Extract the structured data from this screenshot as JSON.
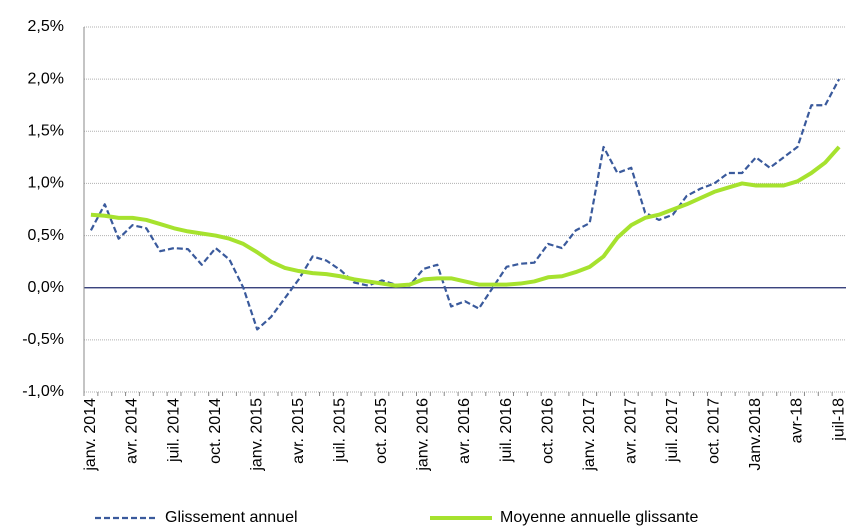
{
  "chart_data": {
    "type": "line",
    "categories": [
      "janv. 2014",
      null,
      null,
      "avr. 2014",
      null,
      null,
      "juil. 2014",
      null,
      null,
      "oct. 2014",
      null,
      null,
      "janv. 2015",
      null,
      null,
      "avr. 2015",
      null,
      null,
      "juil. 2015",
      null,
      null,
      "oct. 2015",
      null,
      null,
      "janv. 2016",
      null,
      null,
      "avr. 2016",
      null,
      null,
      "juil. 2016",
      null,
      null,
      "oct. 2016",
      null,
      null,
      "janv. 2017",
      null,
      null,
      "avr. 2017",
      null,
      null,
      "juil. 2017",
      null,
      null,
      "oct. 2017",
      null,
      null,
      "Janv.2018",
      null,
      null,
      "avr-18",
      null,
      null,
      "juil-18"
    ],
    "series": [
      {
        "name": "Glissement annuel",
        "color": "#3a5a9c",
        "dash": true,
        "values": [
          0.55,
          0.8,
          0.47,
          0.6,
          0.57,
          0.35,
          0.38,
          0.37,
          0.22,
          0.38,
          0.27,
          0.0,
          -0.4,
          -0.28,
          -0.1,
          0.08,
          0.3,
          0.26,
          0.17,
          0.05,
          0.02,
          0.07,
          0.03,
          0.02,
          0.18,
          0.22,
          -0.18,
          -0.13,
          -0.2,
          0.0,
          0.2,
          0.23,
          0.24,
          0.42,
          0.38,
          0.55,
          0.62,
          1.35,
          1.1,
          1.15,
          0.72,
          0.65,
          0.7,
          0.88,
          0.95,
          1.0,
          1.1,
          1.1,
          1.25,
          1.15,
          1.25,
          1.35,
          1.75,
          1.75,
          2.0
        ]
      },
      {
        "name": "Moyenne annuelle glissante",
        "color": "#a6e22e",
        "dash": false,
        "values": [
          0.7,
          0.69,
          0.67,
          0.67,
          0.65,
          0.61,
          0.57,
          0.54,
          0.52,
          0.5,
          0.47,
          0.42,
          0.34,
          0.25,
          0.19,
          0.16,
          0.14,
          0.13,
          0.11,
          0.08,
          0.06,
          0.04,
          0.02,
          0.03,
          0.08,
          0.09,
          0.09,
          0.06,
          0.03,
          0.03,
          0.03,
          0.04,
          0.06,
          0.1,
          0.11,
          0.15,
          0.2,
          0.3,
          0.48,
          0.6,
          0.67,
          0.7,
          0.75,
          0.8,
          0.86,
          0.92,
          0.96,
          1.0,
          0.98,
          0.98,
          0.98,
          1.02,
          1.1,
          1.2,
          1.35
        ]
      }
    ],
    "ylim": [
      -1.0,
      2.5
    ],
    "yticks": [
      {
        "value": -1.0,
        "label": "-1,0%"
      },
      {
        "value": -0.5,
        "label": "-0,5%"
      },
      {
        "value": 0,
        "label": "0,0%"
      },
      {
        "value": 0.5,
        "label": "0,5%"
      },
      {
        "value": 1.0,
        "label": "1,0%"
      },
      {
        "value": 1.5,
        "label": "1,5%"
      },
      {
        "value": 2.0,
        "label": "2,0%"
      },
      {
        "value": 2.5,
        "label": "2,5%"
      }
    ],
    "grid": true,
    "legend": "bottom"
  }
}
